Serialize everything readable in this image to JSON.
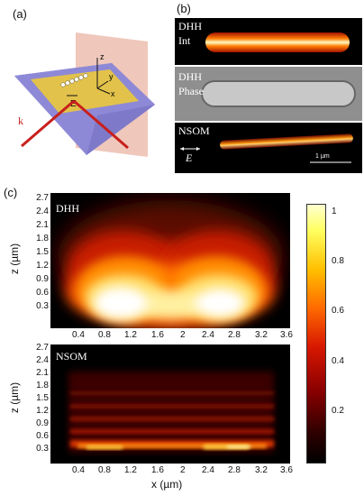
{
  "panels": {
    "a": {
      "label": "(a)",
      "schematic": {
        "axes": [
          "z",
          "y",
          "x"
        ],
        "field": "E",
        "wavevector": "k"
      }
    },
    "b": {
      "label": "(b)",
      "images": [
        {
          "line1": "DHH",
          "line2": "Int"
        },
        {
          "line1": "DHH",
          "line2": "Phase"
        },
        {
          "line1": "NSOM",
          "line2": "E",
          "scalebar": "1 µm"
        }
      ]
    },
    "c": {
      "label": "(c)",
      "maps": [
        {
          "title": "DHH"
        },
        {
          "title": "NSOM"
        }
      ],
      "xlabel": "x (µm)",
      "ylabel": "z (µm)",
      "x_ticks_top": [
        "0.4",
        "0.8",
        "1.2",
        "1.6",
        "2",
        "2.4",
        "2.8",
        "3.2",
        "3.6"
      ],
      "x_ticks_bottom": [
        "0.4",
        "0.8",
        "1.2",
        "1.6",
        "2",
        "2.4",
        "2.8",
        "3.2",
        "3.6"
      ],
      "y_ticks": [
        "2.7",
        "2.4",
        "2.1",
        "1.8",
        "1.5",
        "1.2",
        "0.9",
        "0.6",
        "0.3"
      ],
      "colorbar_ticks": [
        "1",
        "0.8",
        "0.6",
        "0.4",
        "0.2"
      ]
    }
  },
  "chart_data": {
    "type": "heatmap",
    "xlabel": "x (µm)",
    "ylabel": "z (µm)",
    "xlim": [
      0,
      3.6
    ],
    "ylim": [
      0,
      2.7
    ],
    "colorbar_range": [
      0.05,
      1.05
    ],
    "series": [
      {
        "name": "DHH"
      },
      {
        "name": "NSOM"
      }
    ]
  }
}
